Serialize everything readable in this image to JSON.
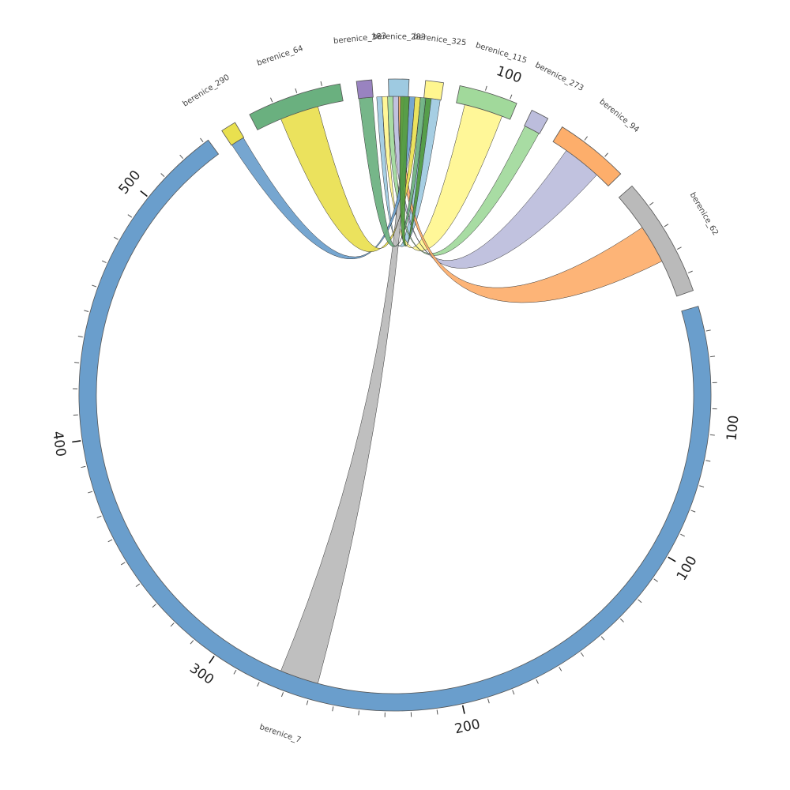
{
  "chart_data": {
    "type": "chord",
    "title": "",
    "hub": "berenice_283",
    "segments": [
      {
        "id": "berenice_283",
        "label": "berenice_283",
        "length": 8,
        "color": "#9ecae1",
        "ticks": []
      },
      {
        "id": "berenice_325",
        "label": "berenice_325",
        "length": 7,
        "color": "#fff68f",
        "ticks": []
      },
      {
        "id": "berenice_115",
        "label": "berenice_115",
        "length": 23,
        "color": "#a1d99b",
        "ticks": []
      },
      {
        "id": "berenice_273",
        "label": "berenice_273",
        "length": 7,
        "color": "#bcbddc",
        "ticks": []
      },
      {
        "id": "berenice_94",
        "label": "berenice_94",
        "length": 29,
        "color": "#fdae6b",
        "ticks": []
      },
      {
        "id": "berenice_62",
        "label": "berenice_62",
        "length": 47,
        "color": "#bababa",
        "ticks": [
          100
        ]
      },
      {
        "id": "berenice_7",
        "label": "berenice_7",
        "length": 532,
        "color": "#6a9ecc",
        "ticks": [
          100,
          200,
          300,
          400,
          500
        ]
      },
      {
        "id": "berenice_290",
        "label": "berenice_290",
        "length": 6,
        "color": "#e9e04f",
        "ticks": []
      },
      {
        "id": "berenice_64",
        "label": "berenice_64",
        "length": 37,
        "color": "#6ab07f",
        "ticks": [
          100
        ]
      },
      {
        "id": "berenice_383",
        "label": "berenice_383",
        "length": 6,
        "color": "#9983c0",
        "ticks": []
      }
    ],
    "links": [
      {
        "source": "berenice_283",
        "target": "berenice_325",
        "color": "#9ecae1"
      },
      {
        "source": "berenice_283",
        "target": "berenice_115",
        "color": "#fff68f"
      },
      {
        "source": "berenice_283",
        "target": "berenice_273",
        "color": "#a1d99b"
      },
      {
        "source": "berenice_283",
        "target": "berenice_94",
        "color": "#bcbddc"
      },
      {
        "source": "berenice_283",
        "target": "berenice_62",
        "color": "#fdae6b"
      },
      {
        "source": "berenice_283",
        "target": "berenice_7",
        "color": "#bababa"
      },
      {
        "source": "berenice_283",
        "target": "berenice_290",
        "color": "#6a9ecc"
      },
      {
        "source": "berenice_283",
        "target": "berenice_64",
        "color": "#e9e04f"
      },
      {
        "source": "berenice_283",
        "target": "berenice_383",
        "color": "#6ab07f"
      },
      {
        "source": "berenice_283",
        "target": "berenice_283",
        "color": "#4f9a3e"
      }
    ]
  }
}
